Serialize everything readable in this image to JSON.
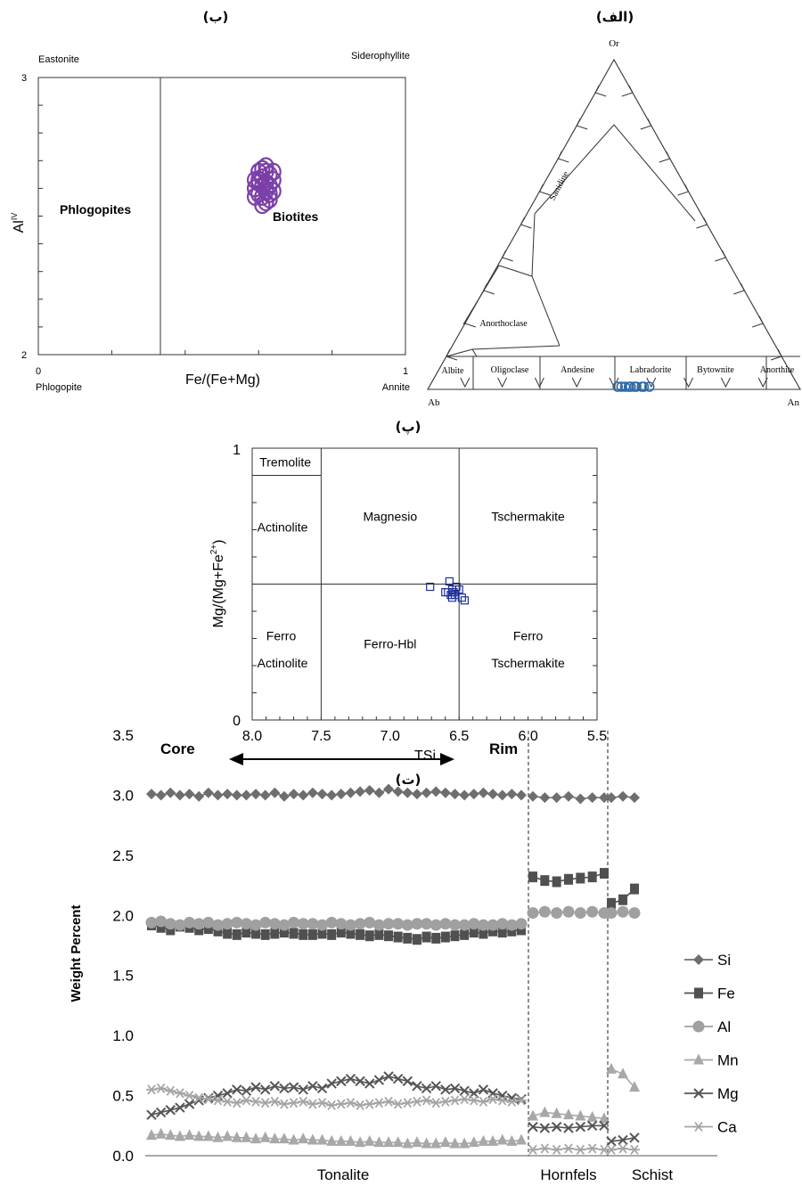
{
  "panels": {
    "a": "(الف)",
    "b": "(ب)",
    "p": "(پ)",
    "t": "(ت)"
  },
  "chart_data": [
    {
      "id": "b",
      "type": "scatter",
      "xlabel": "Fe/(Fe+Mg)",
      "ylabel": "Al",
      "ylabel_sup": "IV",
      "xlim": [
        0,
        1
      ],
      "ylim": [
        2,
        3
      ],
      "x_ticks": [
        "0",
        "1"
      ],
      "y_ticks": [
        "2",
        "3"
      ],
      "corner_labels": {
        "top_left": "Eastonite",
        "top_right": "Siderophyllite",
        "bottom_left": "Phlogopite",
        "bottom_right": "Annite"
      },
      "divider_x": 0.35,
      "fields": [
        {
          "label": "Phlogopites",
          "x": 0.11,
          "y": 2.62
        },
        {
          "label": "Biotites",
          "x": 0.68,
          "y": 2.6
        }
      ],
      "marker_color": "#7b3fa8",
      "points": [
        {
          "x": 0.6,
          "y": 2.62
        },
        {
          "x": 0.61,
          "y": 2.64
        },
        {
          "x": 0.62,
          "y": 2.66
        },
        {
          "x": 0.59,
          "y": 2.6
        },
        {
          "x": 0.6,
          "y": 2.58
        },
        {
          "x": 0.61,
          "y": 2.57
        },
        {
          "x": 0.62,
          "y": 2.59
        },
        {
          "x": 0.63,
          "y": 2.61
        },
        {
          "x": 0.63,
          "y": 2.65
        },
        {
          "x": 0.64,
          "y": 2.63
        },
        {
          "x": 0.62,
          "y": 2.55
        },
        {
          "x": 0.61,
          "y": 2.54
        },
        {
          "x": 0.59,
          "y": 2.57
        },
        {
          "x": 0.6,
          "y": 2.66
        },
        {
          "x": 0.62,
          "y": 2.68
        },
        {
          "x": 0.64,
          "y": 2.59
        },
        {
          "x": 0.63,
          "y": 2.56
        },
        {
          "x": 0.61,
          "y": 2.61
        },
        {
          "x": 0.6,
          "y": 2.63
        },
        {
          "x": 0.62,
          "y": 2.62
        },
        {
          "x": 0.64,
          "y": 2.66
        },
        {
          "x": 0.59,
          "y": 2.63
        },
        {
          "x": 0.61,
          "y": 2.67
        },
        {
          "x": 0.63,
          "y": 2.58
        }
      ]
    },
    {
      "id": "a",
      "type": "ternary",
      "apices": {
        "top": "Or",
        "left": "Ab",
        "right": "An"
      },
      "field_labels": [
        "Sanidine",
        "Anorthoclase",
        "Albite",
        "Oligoclase",
        "Andesine",
        "Labradorite",
        "Bytownite",
        "Anorthite"
      ],
      "marker_color": "#2e6aa6",
      "points_an_fraction": [
        0.51,
        0.52,
        0.53,
        0.54,
        0.545,
        0.555,
        0.56,
        0.575,
        0.58,
        0.595
      ]
    },
    {
      "id": "p",
      "type": "scatter",
      "xlabel": "TSi",
      "ylabel": "Mg/(Mg+Fe",
      "ylabel_sup": "2+",
      "ylabel_end": ")",
      "xlim": [
        8.0,
        5.5
      ],
      "ylim": [
        0,
        1
      ],
      "x_ticks": [
        "8.0",
        "7.5",
        "7.0",
        "6.5",
        "6.0",
        "5.5"
      ],
      "y_ticks": [
        "0",
        "1"
      ],
      "divider_x": [
        7.5,
        6.5
      ],
      "divider_y": 0.5,
      "tremolite_y": 0.9,
      "fields": [
        {
          "label": "Tremolite",
          "x": 7.76,
          "y": 0.95
        },
        {
          "label": "Actinolite",
          "x": 7.78,
          "y": 0.71
        },
        {
          "label": "Magnesio",
          "x": 7.0,
          "y": 0.75
        },
        {
          "label": "Tschermakite",
          "x": 6.0,
          "y": 0.75
        },
        {
          "label": "Ferro",
          "x": 7.79,
          "y": 0.31
        },
        {
          "label": "Actinolite",
          "x": 7.78,
          "y": 0.21
        },
        {
          "label": "Ferro-Hbl",
          "x": 7.0,
          "y": 0.28
        },
        {
          "label": "Ferro",
          "x": 6.0,
          "y": 0.31
        },
        {
          "label": "Tschermakite",
          "x": 6.0,
          "y": 0.21
        }
      ],
      "marker_color": "#1f2f9a",
      "points": [
        {
          "x": 6.71,
          "y": 0.49
        },
        {
          "x": 6.57,
          "y": 0.51
        },
        {
          "x": 6.58,
          "y": 0.47
        },
        {
          "x": 6.56,
          "y": 0.46
        },
        {
          "x": 6.55,
          "y": 0.48
        },
        {
          "x": 6.54,
          "y": 0.47
        },
        {
          "x": 6.53,
          "y": 0.46
        },
        {
          "x": 6.52,
          "y": 0.49
        },
        {
          "x": 6.5,
          "y": 0.48
        },
        {
          "x": 6.48,
          "y": 0.45
        },
        {
          "x": 6.46,
          "y": 0.44
        },
        {
          "x": 6.6,
          "y": 0.47
        },
        {
          "x": 6.55,
          "y": 0.45
        }
      ]
    },
    {
      "id": "t",
      "type": "line",
      "ylabel": "Weight Percent",
      "ylim": [
        0,
        3.5
      ],
      "y_ticks": [
        "0.0",
        "0.5",
        "1.0",
        "1.5",
        "2.0",
        "2.5",
        "3.0",
        "3.5"
      ],
      "zones": [
        "Tonalite",
        "Hornfels",
        "Schist"
      ],
      "annotations": {
        "left": "Core",
        "right": "Rim"
      },
      "legend_position": "right",
      "series": [
        {
          "name": "Si",
          "marker": "diamond",
          "color": "#6e6e6e",
          "segments": [
            {
              "zone": "Tonalite",
              "values": [
                3.01,
                3.0,
                3.02,
                3.0,
                3.01,
                2.99,
                3.02,
                3.0,
                3.01,
                3.0,
                3.0,
                3.01,
                3.0,
                3.02,
                2.99,
                3.01,
                3.0,
                3.02,
                3.01,
                3.0,
                3.01,
                3.02,
                3.03,
                3.04,
                3.02,
                3.05,
                3.03,
                3.02,
                3.01,
                3.02,
                3.03,
                3.02,
                3.01,
                3.0,
                3.01,
                3.02,
                3.01,
                3.0,
                3.01,
                3.0
              ]
            },
            {
              "zone": "Hornfels",
              "values": [
                2.99,
                2.98,
                2.98,
                2.99,
                2.97,
                2.98,
                2.98
              ]
            },
            {
              "zone": "Schist",
              "values": [
                2.98,
                2.99,
                2.98
              ]
            }
          ]
        },
        {
          "name": "Fe",
          "marker": "square",
          "color": "#505050",
          "segments": [
            {
              "zone": "Tonalite",
              "values": [
                1.92,
                1.9,
                1.88,
                1.91,
                1.9,
                1.88,
                1.89,
                1.87,
                1.85,
                1.84,
                1.86,
                1.85,
                1.84,
                1.85,
                1.86,
                1.85,
                1.84,
                1.84,
                1.85,
                1.84,
                1.86,
                1.85,
                1.84,
                1.83,
                1.84,
                1.83,
                1.82,
                1.81,
                1.8,
                1.82,
                1.81,
                1.82,
                1.83,
                1.84,
                1.86,
                1.85,
                1.87,
                1.86,
                1.87,
                1.88
              ]
            },
            {
              "zone": "Hornfels",
              "values": [
                2.32,
                2.29,
                2.28,
                2.3,
                2.31,
                2.32,
                2.35
              ]
            },
            {
              "zone": "Schist",
              "values": [
                2.1,
                2.13,
                2.22
              ]
            }
          ]
        },
        {
          "name": "Al",
          "marker": "circle",
          "color": "#a0a0a0",
          "segments": [
            {
              "zone": "Tonalite",
              "values": [
                1.94,
                1.95,
                1.93,
                1.92,
                1.94,
                1.93,
                1.94,
                1.92,
                1.93,
                1.94,
                1.93,
                1.92,
                1.94,
                1.93,
                1.92,
                1.94,
                1.93,
                1.93,
                1.92,
                1.94,
                1.93,
                1.92,
                1.93,
                1.94,
                1.92,
                1.93,
                1.93,
                1.92,
                1.93,
                1.93,
                1.92,
                1.93,
                1.92,
                1.92,
                1.93,
                1.92,
                1.92,
                1.93,
                1.92,
                1.93
              ]
            },
            {
              "zone": "Hornfels",
              "values": [
                2.02,
                2.03,
                2.02,
                2.03,
                2.02,
                2.03,
                2.02
              ]
            },
            {
              "zone": "Schist",
              "values": [
                2.02,
                2.03,
                2.02
              ]
            }
          ]
        },
        {
          "name": "Mn",
          "marker": "triangle",
          "color": "#a8a8a8",
          "segments": [
            {
              "zone": "Tonalite",
              "values": [
                0.17,
                0.18,
                0.17,
                0.16,
                0.17,
                0.16,
                0.16,
                0.15,
                0.16,
                0.15,
                0.15,
                0.14,
                0.15,
                0.14,
                0.14,
                0.13,
                0.14,
                0.13,
                0.13,
                0.12,
                0.12,
                0.12,
                0.11,
                0.12,
                0.11,
                0.11,
                0.11,
                0.1,
                0.11,
                0.1,
                0.1,
                0.11,
                0.1,
                0.1,
                0.11,
                0.12,
                0.12,
                0.13,
                0.12,
                0.13
              ]
            },
            {
              "zone": "Hornfels",
              "values": [
                0.33,
                0.36,
                0.35,
                0.34,
                0.33,
                0.32,
                0.31
              ]
            },
            {
              "zone": "Schist",
              "values": [
                0.72,
                0.68,
                0.57
              ]
            }
          ]
        },
        {
          "name": "Mg",
          "marker": "x",
          "color": "#555555",
          "segments": [
            {
              "zone": "Tonalite",
              "values": [
                0.34,
                0.36,
                0.38,
                0.4,
                0.43,
                0.46,
                0.48,
                0.5,
                0.52,
                0.55,
                0.54,
                0.57,
                0.55,
                0.58,
                0.56,
                0.57,
                0.55,
                0.58,
                0.56,
                0.6,
                0.62,
                0.64,
                0.62,
                0.6,
                0.63,
                0.66,
                0.64,
                0.62,
                0.58,
                0.56,
                0.58,
                0.55,
                0.56,
                0.54,
                0.52,
                0.55,
                0.52,
                0.5,
                0.48,
                0.47
              ]
            },
            {
              "zone": "Hornfels",
              "values": [
                0.24,
                0.23,
                0.24,
                0.23,
                0.24,
                0.25,
                0.25
              ]
            },
            {
              "zone": "Schist",
              "values": [
                0.12,
                0.13,
                0.15
              ]
            }
          ]
        },
        {
          "name": "Ca",
          "marker": "asterisk",
          "color": "#a5a5a5",
          "segments": [
            {
              "zone": "Tonalite",
              "values": [
                0.55,
                0.56,
                0.54,
                0.52,
                0.5,
                0.48,
                0.47,
                0.46,
                0.45,
                0.44,
                0.46,
                0.45,
                0.44,
                0.45,
                0.43,
                0.44,
                0.45,
                0.43,
                0.44,
                0.42,
                0.43,
                0.44,
                0.42,
                0.43,
                0.44,
                0.45,
                0.43,
                0.44,
                0.45,
                0.46,
                0.44,
                0.45,
                0.46,
                0.47,
                0.46,
                0.45,
                0.47,
                0.46,
                0.45,
                0.46
              ]
            },
            {
              "zone": "Hornfels",
              "values": [
                0.05,
                0.06,
                0.05,
                0.06,
                0.05,
                0.06,
                0.05
              ]
            },
            {
              "zone": "Schist",
              "values": [
                0.05,
                0.06,
                0.05
              ]
            }
          ]
        }
      ]
    }
  ]
}
